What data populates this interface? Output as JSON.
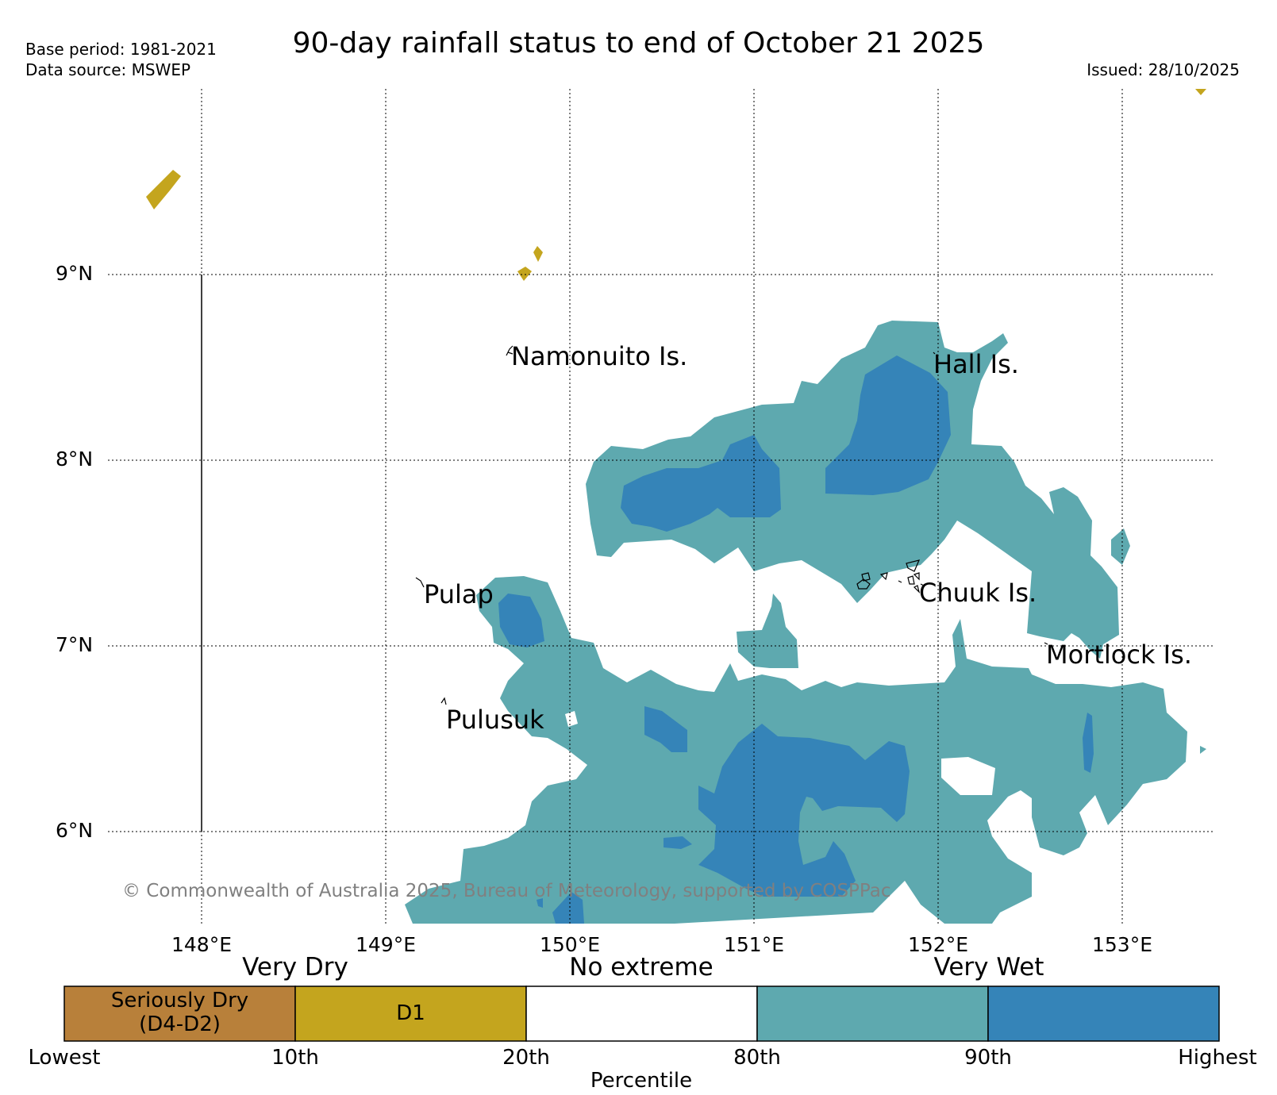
{
  "header": {
    "title": "90-day rainfall status to end of October 21 2025",
    "base_period": "Base period: 1981-2021",
    "data_source": "Data source: MSWEP",
    "issued": "Issued: 28/10/2025"
  },
  "map": {
    "lat_labels": [
      "9°N",
      "8°N",
      "7°N",
      "6°N"
    ],
    "lon_labels": [
      "148°E",
      "149°E",
      "150°E",
      "151°E",
      "152°E",
      "153°E"
    ],
    "places": {
      "namonuito": "Namonuito Is.",
      "hall": "Hall Is.",
      "pulap": "Pulap",
      "chuuk": "Chuuk Is.",
      "mortlock": "Mortlock Is.",
      "pulusuk": "Pulusuk"
    },
    "copyright": "© Commonwealth of Australia 2025, Bureau of Meteorology, supported by COSPPac"
  },
  "legend": {
    "categories": {
      "very_dry": "Very Dry",
      "no_extreme": "No extreme",
      "very_wet": "Very Wet"
    },
    "boxes": {
      "seriously_dry_line1": "Seriously Dry",
      "seriously_dry_line2": "(D4-D2)",
      "d1": "D1"
    },
    "percentiles": {
      "lowest": "Lowest",
      "p10": "10th",
      "p20": "20th",
      "p80": "80th",
      "p90": "90th",
      "highest": "Highest"
    },
    "axis_title": "Percentile"
  },
  "colors": {
    "seriously_dry": "#B8803A",
    "d1": "#C4A51E",
    "no_extreme": "#FFFFFF",
    "p80_90": "#5EA9AF",
    "p90_plus": "#3584B8"
  }
}
